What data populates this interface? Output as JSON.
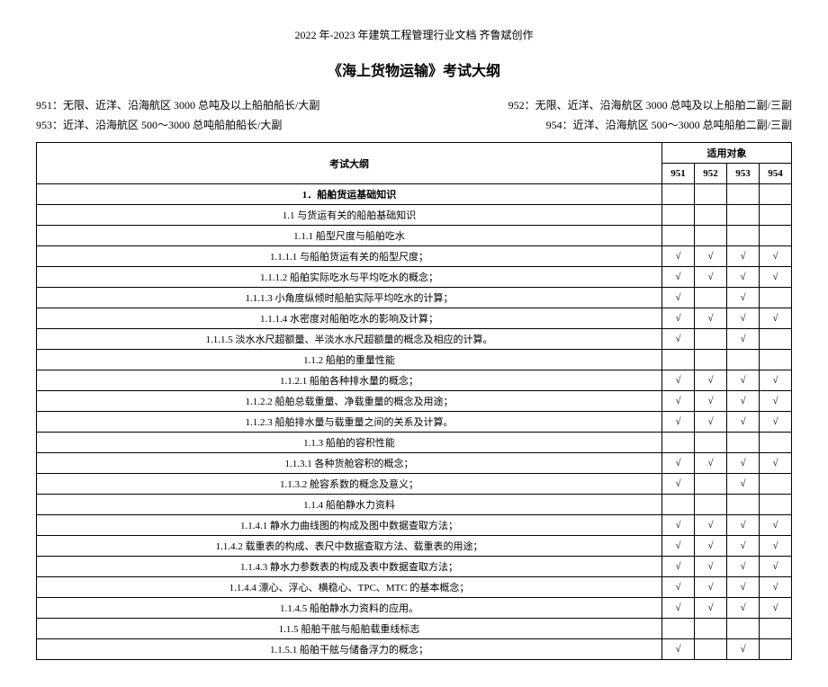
{
  "header": "2022 年-2023 年建筑工程管理行业文档 齐鲁斌创作",
  "title": "《海上货物运输》考试大纲",
  "codes": {
    "c951": "951：无限、近洋、沿海航区 3000 总吨及以上船舶船长/大副",
    "c952": "952：无限、近洋、沿海航区 3000 总吨及以上船舶二副/三副",
    "c953": "953：近洋、沿海航区 500～3000 总吨船舶船长/大副",
    "c954": "954：近洋、沿海航区 500～3000 总吨船舶二副/三副"
  },
  "table": {
    "head_main": "考试大纲",
    "head_group": "适用对象",
    "cols": [
      "951",
      "952",
      "953",
      "954"
    ],
    "rows": [
      {
        "label": "1．船舶货运基础知识",
        "bold": true,
        "marks": [
          "",
          "",
          "",
          ""
        ]
      },
      {
        "label": "1.1 与货运有关的船舶基础知识",
        "marks": [
          "",
          "",
          "",
          ""
        ]
      },
      {
        "label": "1.1.1 船型尺度与船舶吃水",
        "marks": [
          "",
          "",
          "",
          ""
        ]
      },
      {
        "label": "1.1.1.1 与船舶货运有关的船型尺度；",
        "marks": [
          "√",
          "√",
          "√",
          "√"
        ]
      },
      {
        "label": "1.1.1.2 船舶实际吃水与平均吃水的概念；",
        "marks": [
          "√",
          "√",
          "√",
          "√"
        ]
      },
      {
        "label": "1.1.1.3 小角度纵倾时船舶实际平均吃水的计算；",
        "marks": [
          "√",
          "",
          "√",
          ""
        ]
      },
      {
        "label": "1.1.1.4 水密度对船舶吃水的影响及计算；",
        "marks": [
          "√",
          "√",
          "√",
          "√"
        ]
      },
      {
        "label": "1.1.1.5 淡水水尺超额量、半淡水水尺超额量的概念及相应的计算。",
        "marks": [
          "√",
          "",
          "√",
          ""
        ]
      },
      {
        "label": "1.1.2 船舶的重量性能",
        "marks": [
          "",
          "",
          "",
          ""
        ]
      },
      {
        "label": "1.1.2.1 船舶各种排水量的概念；",
        "marks": [
          "√",
          "√",
          "√",
          "√"
        ]
      },
      {
        "label": "1.1.2.2 船舶总载重量、净载重量的概念及用途；",
        "marks": [
          "√",
          "√",
          "√",
          "√"
        ]
      },
      {
        "label": "1.1.2.3 船舶排水量与载重量之间的关系及计算。",
        "marks": [
          "√",
          "√",
          "√",
          "√"
        ]
      },
      {
        "label": "1.1.3 船舶的容积性能",
        "marks": [
          "",
          "",
          "",
          ""
        ]
      },
      {
        "label": "1.1.3.1 各种货舱容积的概念；",
        "marks": [
          "√",
          "√",
          "√",
          "√"
        ]
      },
      {
        "label": "1.1.3.2 舱容系数的概念及意义；",
        "marks": [
          "√",
          "",
          "√",
          ""
        ]
      },
      {
        "label": "1.1.4 船舶静水力资料",
        "marks": [
          "",
          "",
          "",
          ""
        ]
      },
      {
        "label": "1.1.4.1 静水力曲线图的构成及图中数据查取方法；",
        "marks": [
          "√",
          "√",
          "√",
          "√"
        ]
      },
      {
        "label": "1.1.4.2 载重表的构成、表尺中数据查取方法、载重表的用途；",
        "marks": [
          "√",
          "√",
          "√",
          "√"
        ]
      },
      {
        "label": "1.1.4.3 静水力参数表的构成及表中数据查取方法；",
        "marks": [
          "√",
          "√",
          "√",
          "√"
        ]
      },
      {
        "label": "1.1.4.4 漂心、浮心、横稳心、TPC、MTC 的基本概念；",
        "marks": [
          "√",
          "√",
          "√",
          "√"
        ]
      },
      {
        "label": "1.1.4.5 船舶静水力资料的应用。",
        "marks": [
          "√",
          "√",
          "√",
          "√"
        ]
      },
      {
        "label": "1.1.5 船舶干舷与船舶载重线标志",
        "marks": [
          "",
          "",
          "",
          ""
        ]
      },
      {
        "label": "1.1.5.1 船舶干舷与储备浮力的概念；",
        "marks": [
          "√",
          "",
          "√",
          ""
        ]
      }
    ]
  }
}
